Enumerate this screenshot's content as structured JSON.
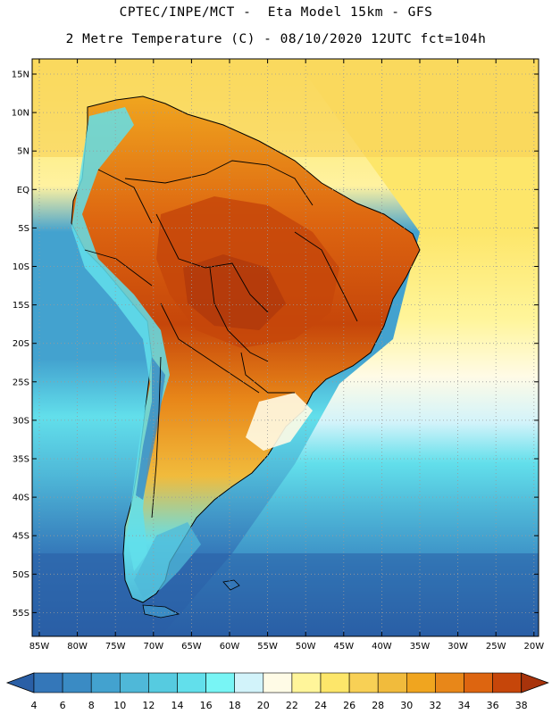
{
  "header": {
    "line1": "CPTEC/INPE/MCT -  Eta Model 15km - GFS",
    "line2": "2 Metre Temperature (C) - 08/10/2020 12UTC fct=104h"
  },
  "map": {
    "lat_labels": [
      "15N",
      "10N",
      "5N",
      "EQ",
      "5S",
      "10S",
      "15S",
      "20S",
      "25S",
      "30S",
      "35S",
      "40S",
      "45S",
      "50S",
      "55S"
    ],
    "lon_labels": [
      "85W",
      "80W",
      "75W",
      "70W",
      "65W",
      "60W",
      "55W",
      "50W",
      "45W",
      "40W",
      "35W",
      "30W",
      "25W",
      "20W"
    ],
    "gridlines": "dotted"
  },
  "colorbar": {
    "labels": [
      "4",
      "6",
      "8",
      "10",
      "12",
      "14",
      "16",
      "18",
      "20",
      "22",
      "24",
      "26",
      "28",
      "30",
      "32",
      "34",
      "36",
      "38"
    ],
    "colors": [
      "#2a5fa6",
      "#3477b9",
      "#3a8bc4",
      "#43a2cf",
      "#4fb8d8",
      "#56cbe0",
      "#62dfeb",
      "#78f5f5",
      "#d2f3fa",
      "#fffbe6",
      "#fff59a",
      "#fde66a",
      "#f8d055",
      "#f1bb3c",
      "#f0a51f",
      "#e88719",
      "#dd6510",
      "#c6460a",
      "#a8330b"
    ]
  }
}
